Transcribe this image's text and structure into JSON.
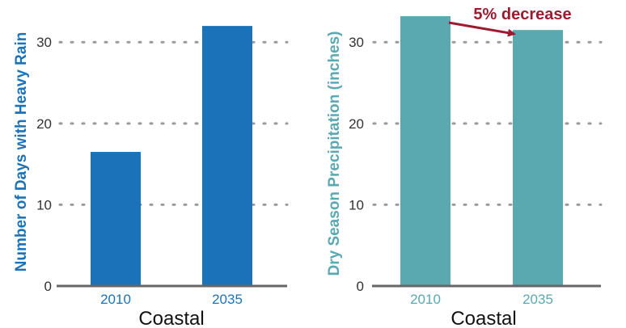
{
  "chart_data": [
    {
      "type": "bar",
      "categories": [
        "2010",
        "2035"
      ],
      "values": [
        16.5,
        32
      ],
      "xlabel": "Coastal",
      "ylabel": "Number of Days with Heavy Rain",
      "ylim": [
        0,
        34
      ],
      "yticks": [
        0,
        10,
        20,
        30
      ],
      "grid": "horizontal dotted",
      "colors": {
        "bar": "#1a73b8",
        "ylabel": "#1a73b8",
        "tick_labels": "#1a73b8"
      }
    },
    {
      "type": "bar",
      "categories": [
        "2010",
        "2035"
      ],
      "values": [
        33.2,
        31.5
      ],
      "xlabel": "Coastal",
      "ylabel": "Dry Season Precipitation (inches)",
      "ylim": [
        0,
        34
      ],
      "yticks": [
        0,
        10,
        20,
        30
      ],
      "grid": "horizontal dotted",
      "annotation": {
        "text": "5% decrease",
        "color": "#9b1b30"
      },
      "colors": {
        "bar": "#5aa8b0",
        "ylabel": "#5aa8b0",
        "tick_labels": "#5aa8b0"
      }
    }
  ]
}
